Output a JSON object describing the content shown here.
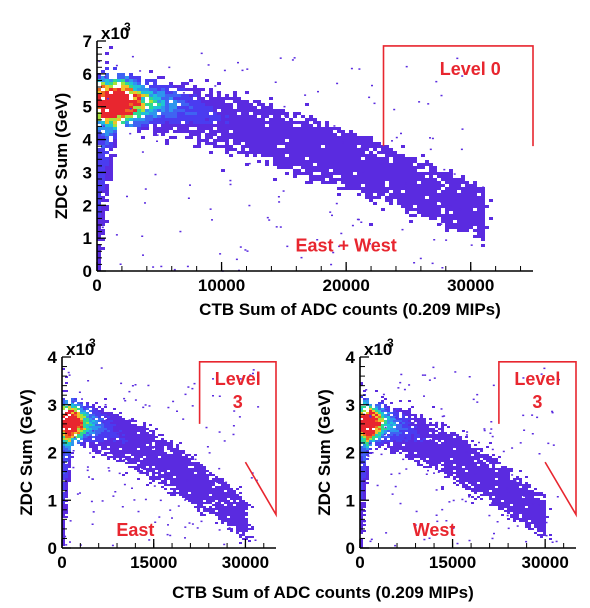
{
  "chart_data": [
    {
      "type": "heatmap",
      "id": "top",
      "xlabel": "CTB Sum of ADC counts (0.209 MIPs)",
      "ylabel": "ZDC Sum (GeV)",
      "y_multiplier_label": "x10",
      "y_multiplier_exp": "3",
      "xlim": [
        0,
        35000
      ],
      "ylim": [
        0,
        7000
      ],
      "xticks": [
        0,
        10000,
        20000,
        30000
      ],
      "xtick_labels": [
        "0",
        "10000",
        "20000",
        "30000"
      ],
      "yticks": [
        0,
        1000,
        2000,
        3000,
        4000,
        5000,
        6000,
        7000
      ],
      "ytick_labels": [
        "0",
        "1",
        "2",
        "3",
        "4",
        "5",
        "6",
        "7"
      ],
      "annotations": [
        {
          "text": "East + West",
          "x": 20000,
          "y": 600
        }
      ],
      "cut_region": {
        "label": "Level 0",
        "polygon": [
          [
            23000,
            3800
          ],
          [
            23000,
            6850
          ],
          [
            35000,
            6850
          ],
          [
            35000,
            3800
          ]
        ]
      },
      "band": {
        "peak_x": 1200,
        "peak_y": 5100,
        "end_x": 31000,
        "upper_start": 5900,
        "upper_end": 2400,
        "lower_start": 4500,
        "lower_end": 900
      }
    },
    {
      "type": "heatmap",
      "id": "east",
      "xlabel": "CTB Sum of ADC counts (0.209 MIPs)",
      "ylabel": "ZDC Sum (GeV)",
      "y_multiplier_label": "x10",
      "y_multiplier_exp": "3",
      "xlim": [
        0,
        35000
      ],
      "ylim": [
        0,
        4000
      ],
      "xticks": [
        0,
        15000,
        30000
      ],
      "xtick_labels": [
        "0",
        "15000",
        "30000"
      ],
      "yticks": [
        0,
        1000,
        2000,
        3000,
        4000
      ],
      "ytick_labels": [
        "0",
        "1",
        "2",
        "3",
        "4"
      ],
      "annotations": [
        {
          "text": "East",
          "x": 12000,
          "y": 250
        }
      ],
      "cut_region": {
        "label": "Level 3",
        "polygon": [
          [
            22500,
            2600
          ],
          [
            22500,
            3900
          ],
          [
            35000,
            3900
          ],
          [
            35000,
            700
          ],
          [
            30000,
            1800
          ]
        ]
      },
      "band": {
        "peak_x": 1000,
        "peak_y": 2600,
        "end_x": 30000,
        "upper_start": 3050,
        "upper_end": 950,
        "lower_start": 2250,
        "lower_end": 150
      }
    },
    {
      "type": "heatmap",
      "id": "west",
      "xlabel": "",
      "ylabel": "ZDC Sum (GeV)",
      "y_multiplier_label": "x10",
      "y_multiplier_exp": "3",
      "xlim": [
        0,
        35000
      ],
      "ylim": [
        0,
        4000
      ],
      "xticks": [
        0,
        15000,
        30000
      ],
      "xtick_labels": [
        "0",
        "15000",
        "30000"
      ],
      "yticks": [
        0,
        1000,
        2000,
        3000,
        4000
      ],
      "ytick_labels": [
        "0",
        "1",
        "2",
        "3",
        "4"
      ],
      "annotations": [
        {
          "text": "West",
          "x": 12000,
          "y": 250
        }
      ],
      "cut_region": {
        "label": "Level 3",
        "polygon": [
          [
            22500,
            2600
          ],
          [
            22500,
            3900
          ],
          [
            35000,
            3900
          ],
          [
            35000,
            700
          ],
          [
            30000,
            1800
          ]
        ]
      },
      "band": {
        "peak_x": 1000,
        "peak_y": 2600,
        "end_x": 30000,
        "upper_start": 3050,
        "upper_end": 950,
        "lower_start": 2250,
        "lower_end": 150
      }
    }
  ],
  "colors": {
    "cut": "#e8262f",
    "scale": [
      "#5a2be0",
      "#4a3cf0",
      "#3f63f2",
      "#2e95ee",
      "#1fc2d8",
      "#2ed98f",
      "#a6e23a",
      "#f0c12a",
      "#f06a20",
      "#e8262f"
    ]
  }
}
